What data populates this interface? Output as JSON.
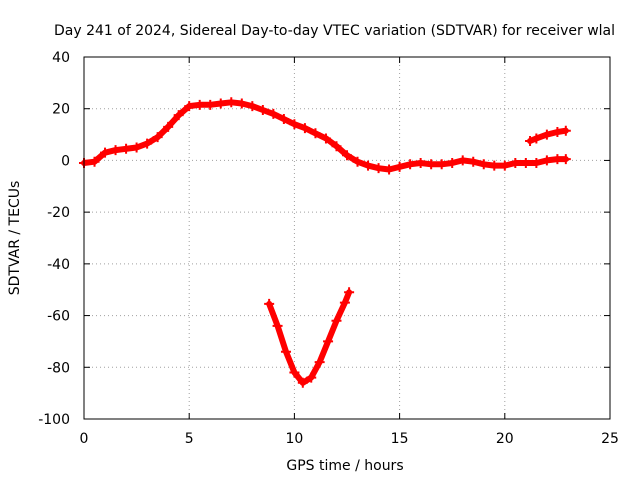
{
  "chart_data": {
    "type": "scatter",
    "title": "Day 241 of 2024, Sidereal Day-to-day VTEC variation (SDTVAR) for receiver wlal",
    "xlabel": "GPS time / hours",
    "ylabel": "SDTVAR / TECUs",
    "xlim": [
      0,
      25
    ],
    "ylim": [
      -100,
      40
    ],
    "grid": true,
    "legend": "none",
    "xticks": [
      "0",
      "5",
      "10",
      "15",
      "20",
      "25"
    ],
    "yticks": [
      "40",
      "20",
      "0",
      "-20",
      "-40",
      "-60",
      "-80",
      "-100"
    ],
    "series": [
      {
        "name": "SDTVAR main",
        "color": "#ff0000",
        "marker": "plus",
        "points": [
          [
            0.0,
            -1.0
          ],
          [
            0.5,
            -0.5
          ],
          [
            1.0,
            3.0
          ],
          [
            1.5,
            4.0
          ],
          [
            2.0,
            4.5
          ],
          [
            2.5,
            5.0
          ],
          [
            3.0,
            6.5
          ],
          [
            3.5,
            9.0
          ],
          [
            4.0,
            13.0
          ],
          [
            4.5,
            17.5
          ],
          [
            5.0,
            21.0
          ],
          [
            5.5,
            21.5
          ],
          [
            6.0,
            21.5
          ],
          [
            6.5,
            22.0
          ],
          [
            7.0,
            22.5
          ],
          [
            7.5,
            22.0
          ],
          [
            8.0,
            21.0
          ],
          [
            8.5,
            19.5
          ],
          [
            9.0,
            18.0
          ],
          [
            9.5,
            16.0
          ],
          [
            10.0,
            14.0
          ],
          [
            10.5,
            12.5
          ],
          [
            11.0,
            10.5
          ],
          [
            11.5,
            8.5
          ],
          [
            12.0,
            5.5
          ],
          [
            12.5,
            2.0
          ],
          [
            13.0,
            -0.5
          ],
          [
            13.5,
            -2.0
          ],
          [
            14.0,
            -3.0
          ],
          [
            14.5,
            -3.5
          ],
          [
            15.0,
            -2.5
          ],
          [
            15.5,
            -1.5
          ],
          [
            16.0,
            -1.0
          ],
          [
            16.5,
            -1.5
          ],
          [
            17.0,
            -1.5
          ],
          [
            17.5,
            -1.0
          ],
          [
            18.0,
            0.0
          ],
          [
            18.5,
            -0.5
          ],
          [
            19.0,
            -1.5
          ],
          [
            19.5,
            -2.0
          ],
          [
            20.0,
            -2.0
          ],
          [
            20.5,
            -1.0
          ],
          [
            21.0,
            -1.0
          ],
          [
            21.5,
            -1.0
          ],
          [
            22.0,
            0.0
          ],
          [
            22.5,
            0.5
          ],
          [
            22.9,
            0.5
          ]
        ]
      },
      {
        "name": "SDTVAR upper segment",
        "color": "#ff0000",
        "marker": "plus",
        "points": [
          [
            21.2,
            7.5
          ],
          [
            21.5,
            8.5
          ],
          [
            22.0,
            10.0
          ],
          [
            22.5,
            11.0
          ],
          [
            22.9,
            11.5
          ]
        ]
      },
      {
        "name": "SDTVAR dip segment",
        "color": "#ff0000",
        "marker": "plus",
        "points": [
          [
            8.8,
            -55.5
          ],
          [
            9.2,
            -64.0
          ],
          [
            9.6,
            -74.0
          ],
          [
            10.0,
            -82.0
          ],
          [
            10.4,
            -86.0
          ],
          [
            10.8,
            -84.0
          ],
          [
            11.2,
            -78.0
          ],
          [
            11.6,
            -70.0
          ],
          [
            12.0,
            -62.0
          ],
          [
            12.4,
            -55.0
          ],
          [
            12.6,
            -51.0
          ]
        ]
      }
    ]
  }
}
